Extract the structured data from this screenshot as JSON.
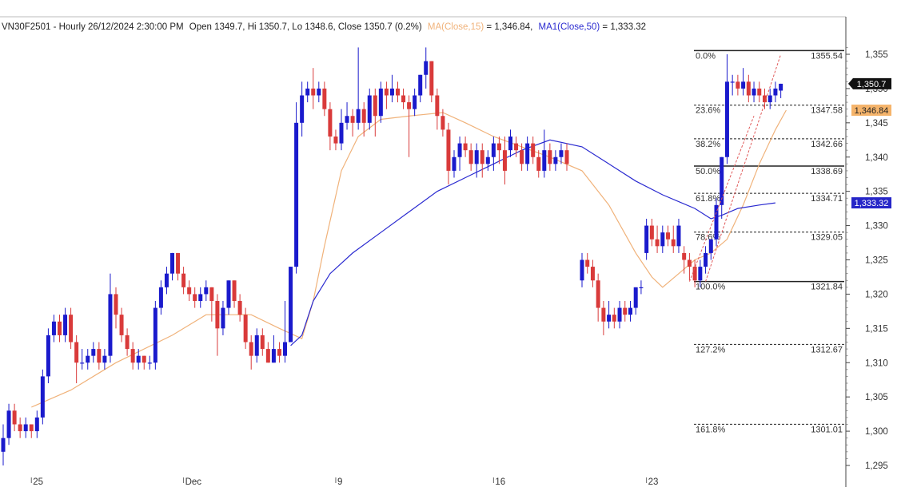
{
  "header": {
    "symbol": "VN30F2501 - Hourly 26/12/2024 2:30:00 PM",
    "ohlc": "Open 1349.7, Hi 1350.7, Lo 1348.6, Close 1350.7 (0.2%)",
    "ma_label": "MA(Close,15)",
    "ma_value": " = 1,346.84,",
    "ma1_label": "MA1(Close,50)",
    "ma1_value": " = 1,333.32"
  },
  "colors": {
    "up": "#1a1acc",
    "down": "#d93a3a",
    "ma15": "#f0b27a",
    "ma50": "#2a2ad0",
    "fib": "#222222",
    "trend": "#e05a5a",
    "axis_text": "#333333",
    "last_price_bg": "#111111",
    "ma15_tag_bg": "#f5b46b",
    "ma50_tag_bg": "#2626c8"
  },
  "chart_data": {
    "type": "candlestick",
    "timeframe": "Hourly",
    "x_ticks": [
      "25",
      "Dec",
      "9",
      "16",
      "23"
    ],
    "y_ticks": [
      1295,
      1300,
      1305,
      1310,
      1315,
      1320,
      1325,
      1330,
      1335,
      1340,
      1345,
      1350,
      1355
    ],
    "y_tick_labels": [
      "1,295",
      "1,300",
      "1,305",
      "1,310",
      "1,315",
      "1,320",
      "1,325",
      "1,330",
      "1,335",
      "1,340",
      "1,345",
      "1,350",
      "1,355"
    ],
    "ylim": [
      1294,
      1357
    ],
    "candles": [
      [
        1297,
        1299,
        1295,
        1301
      ],
      [
        1299,
        1303,
        1298,
        1304
      ],
      [
        1303,
        1301,
        1300,
        1304
      ],
      [
        1301,
        1300,
        1299,
        1302
      ],
      [
        1300,
        1301,
        1299,
        1302
      ],
      [
        1301,
        1300,
        1299,
        1301
      ],
      [
        1300,
        1302,
        1299,
        1303
      ],
      [
        1302,
        1308,
        1301,
        1309
      ],
      [
        1308,
        1314,
        1307,
        1315
      ],
      [
        1314,
        1316,
        1313,
        1317
      ],
      [
        1316,
        1314,
        1313,
        1317
      ],
      [
        1314,
        1317,
        1313,
        1318
      ],
      [
        1317,
        1313,
        1312,
        1318
      ],
      [
        1313,
        1310,
        1307,
        1314
      ],
      [
        1310,
        1310,
        1309,
        1312
      ],
      [
        1310,
        1311,
        1309,
        1312
      ],
      [
        1311,
        1312,
        1310,
        1313
      ],
      [
        1312,
        1310,
        1309,
        1313
      ],
      [
        1310,
        1311,
        1309,
        1312
      ],
      [
        1311,
        1320,
        1310,
        1323
      ],
      [
        1320,
        1317,
        1315,
        1321
      ],
      [
        1317,
        1314,
        1313,
        1318
      ],
      [
        1314,
        1312,
        1311,
        1315
      ],
      [
        1312,
        1310,
        1309,
        1313
      ],
      [
        1310,
        1311,
        1309,
        1312
      ],
      [
        1311,
        1310,
        1309,
        1311
      ],
      [
        1310,
        1310,
        1309,
        1311
      ],
      [
        1310,
        1318,
        1309,
        1319
      ],
      [
        1318,
        1321,
        1317,
        1322
      ],
      [
        1321,
        1323,
        1320,
        1324
      ],
      [
        1323,
        1326,
        1322,
        1326
      ],
      [
        1326,
        1323,
        1322,
        1326
      ],
      [
        1323,
        1321,
        1320,
        1324
      ],
      [
        1321,
        1320,
        1319,
        1322
      ],
      [
        1320,
        1319,
        1318,
        1321
      ],
      [
        1319,
        1320,
        1318,
        1321
      ],
      [
        1320,
        1321,
        1319,
        1322
      ],
      [
        1321,
        1319,
        1316,
        1321
      ],
      [
        1319,
        1315,
        1311,
        1320
      ],
      [
        1315,
        1318,
        1314,
        1319
      ],
      [
        1318,
        1322,
        1317,
        1322
      ],
      [
        1322,
        1319,
        1318,
        1322
      ],
      [
        1319,
        1317,
        1316,
        1320
      ],
      [
        1317,
        1313,
        1312,
        1318
      ],
      [
        1313,
        1311,
        1309,
        1314
      ],
      [
        1311,
        1314,
        1310,
        1315
      ],
      [
        1314,
        1312,
        1311,
        1315
      ],
      [
        1312,
        1310,
        1310,
        1313
      ],
      [
        1310,
        1312,
        1310,
        1314
      ],
      [
        1312,
        1311,
        1310,
        1313
      ],
      [
        1311,
        1313,
        1310,
        1319
      ],
      [
        1313,
        1324,
        1313,
        1324
      ],
      [
        1324,
        1345,
        1323,
        1348
      ],
      [
        1345,
        1349,
        1343,
        1351
      ],
      [
        1349,
        1350,
        1348,
        1351
      ],
      [
        1350,
        1349,
        1347,
        1353
      ],
      [
        1349,
        1350,
        1348,
        1351
      ],
      [
        1350,
        1347,
        1346,
        1351
      ],
      [
        1347,
        1343,
        1341,
        1348
      ],
      [
        1343,
        1342,
        1341,
        1344
      ],
      [
        1342,
        1345,
        1341,
        1347
      ],
      [
        1345,
        1346,
        1344,
        1348
      ],
      [
        1346,
        1345,
        1343,
        1347
      ],
      [
        1345,
        1347,
        1344,
        1356
      ],
      [
        1347,
        1345,
        1343,
        1348
      ],
      [
        1345,
        1349,
        1344,
        1350
      ],
      [
        1349,
        1346,
        1343,
        1350
      ],
      [
        1346,
        1350,
        1345,
        1351
      ],
      [
        1350,
        1349,
        1347,
        1351
      ],
      [
        1349,
        1350,
        1348,
        1352
      ],
      [
        1350,
        1349,
        1348,
        1351
      ],
      [
        1349,
        1348,
        1347,
        1350
      ],
      [
        1348,
        1347,
        1340,
        1349
      ],
      [
        1347,
        1349,
        1346,
        1350
      ],
      [
        1349,
        1352,
        1348,
        1352
      ],
      [
        1352,
        1354,
        1350,
        1356
      ],
      [
        1354,
        1349,
        1348,
        1354
      ],
      [
        1349,
        1346,
        1344,
        1350
      ],
      [
        1346,
        1344,
        1343,
        1347
      ],
      [
        1344,
        1338,
        1336,
        1345
      ],
      [
        1338,
        1340,
        1337,
        1341
      ],
      [
        1340,
        1342,
        1338,
        1343
      ],
      [
        1342,
        1341,
        1340,
        1343
      ],
      [
        1341,
        1339,
        1338,
        1342
      ],
      [
        1339,
        1341,
        1337,
        1342
      ],
      [
        1341,
        1339,
        1337,
        1342
      ],
      [
        1339,
        1340,
        1338,
        1341
      ],
      [
        1340,
        1342,
        1338,
        1343
      ],
      [
        1342,
        1341,
        1339,
        1343
      ],
      [
        1341,
        1338,
        1336,
        1343
      ],
      [
        1341,
        1343,
        1340,
        1344
      ],
      [
        1342,
        1341,
        1340,
        1343
      ],
      [
        1341,
        1339,
        1338,
        1342
      ],
      [
        1339,
        1342,
        1338,
        1343
      ],
      [
        1342,
        1340,
        1339,
        1343
      ],
      [
        1340,
        1338,
        1337,
        1341
      ],
      [
        1338,
        1341,
        1337,
        1344
      ],
      [
        1341,
        1339,
        1338,
        1342
      ],
      [
        1339,
        1340,
        1338,
        1341
      ],
      [
        1340,
        1341,
        1339,
        1342
      ],
      [
        1341,
        1339,
        1338,
        1342
      ],
      [
        1322,
        1325,
        1321,
        1326
      ],
      [
        1325,
        1324,
        1323,
        1326
      ],
      [
        1324,
        1322,
        1321,
        1325
      ],
      [
        1322,
        1318,
        1316,
        1323
      ],
      [
        1318,
        1316,
        1314,
        1319
      ],
      [
        1316,
        1317,
        1315,
        1319
      ],
      [
        1317,
        1316,
        1315,
        1318
      ],
      [
        1316,
        1318,
        1315,
        1319
      ],
      [
        1318,
        1317,
        1316,
        1319
      ],
      [
        1317,
        1318,
        1316,
        1319
      ],
      [
        1318,
        1321,
        1317,
        1321
      ],
      [
        1321,
        1321,
        1320,
        1322
      ],
      [
        1326,
        1330,
        1325,
        1331
      ],
      [
        1330,
        1328,
        1327,
        1331
      ],
      [
        1328,
        1327,
        1326,
        1330
      ],
      [
        1327,
        1329,
        1326,
        1330
      ],
      [
        1329,
        1328,
        1327,
        1330
      ],
      [
        1328,
        1327,
        1326,
        1330
      ],
      [
        1327,
        1330,
        1326,
        1331
      ],
      [
        1326,
        1325,
        1323,
        1327
      ],
      [
        1325,
        1324,
        1322,
        1326
      ],
      [
        1324,
        1322,
        1321,
        1325
      ],
      [
        1322,
        1324,
        1321,
        1325
      ],
      [
        1324,
        1326,
        1323,
        1327
      ],
      [
        1326,
        1328,
        1325,
        1328
      ],
      [
        1328,
        1333,
        1327,
        1334
      ],
      [
        1333,
        1340,
        1331,
        1340
      ],
      [
        1340,
        1351,
        1339,
        1355
      ],
      [
        1351,
        1351,
        1349,
        1352
      ],
      [
        1351,
        1350,
        1349,
        1352
      ],
      [
        1350,
        1351,
        1349,
        1353
      ],
      [
        1351,
        1349,
        1348,
        1352
      ],
      [
        1349,
        1350,
        1348,
        1351
      ],
      [
        1350,
        1349,
        1348,
        1351
      ],
      [
        1349,
        1348,
        1347,
        1350
      ],
      [
        1348,
        1349,
        1347,
        1350
      ],
      [
        1349,
        1350,
        1348,
        1351
      ],
      [
        1349.7,
        1350.7,
        1348.6,
        1350.7
      ]
    ],
    "gap_candle_index": 101,
    "ma15": {
      "name": "MA(Close,15)",
      "points": [
        [
          5,
          1303.5
        ],
        [
          12,
          1306
        ],
        [
          20,
          1310
        ],
        [
          30,
          1314
        ],
        [
          36,
          1317
        ],
        [
          44,
          1317
        ],
        [
          49,
          1315
        ],
        [
          53,
          1313.5
        ],
        [
          55,
          1319
        ],
        [
          57,
          1327
        ],
        [
          60,
          1338
        ],
        [
          63,
          1343
        ],
        [
          67,
          1345.5
        ],
        [
          72,
          1346
        ],
        [
          78,
          1346.5
        ],
        [
          82,
          1345
        ],
        [
          87,
          1343
        ],
        [
          92,
          1341.5
        ],
        [
          97,
          1340
        ],
        [
          101,
          1338
        ],
        [
          106,
          1333
        ],
        [
          111,
          1326
        ],
        [
          114,
          1322.5
        ],
        [
          116,
          1321
        ],
        [
          119,
          1323
        ],
        [
          122,
          1325
        ],
        [
          125,
          1326
        ],
        [
          128,
          1328
        ],
        [
          131,
          1333
        ],
        [
          134,
          1339
        ],
        [
          137,
          1344
        ],
        [
          139,
          1346.84
        ]
      ]
    },
    "ma50": {
      "name": "MA1(Close,50)",
      "points": [
        [
          51,
          1312.5
        ],
        [
          53,
          1314
        ],
        [
          55,
          1319
        ],
        [
          58,
          1323
        ],
        [
          62,
          1326
        ],
        [
          67,
          1329
        ],
        [
          72,
          1332
        ],
        [
          77,
          1335
        ],
        [
          82,
          1337
        ],
        [
          87,
          1339
        ],
        [
          92,
          1341
        ],
        [
          97,
          1342.5
        ],
        [
          101,
          1341.5
        ],
        [
          106,
          1339
        ],
        [
          111,
          1336.5
        ],
        [
          116,
          1334.5
        ],
        [
          122,
          1332.5
        ],
        [
          125,
          1331
        ],
        [
          127,
          1331.5
        ],
        [
          130,
          1332.5
        ],
        [
          134,
          1333
        ],
        [
          137,
          1333.32
        ]
      ]
    },
    "fibonacci": {
      "start_index": 118,
      "end_index": 139,
      "levels": [
        {
          "pct": "0.0%",
          "price": 1355.54,
          "label": "1355.54",
          "solid": true
        },
        {
          "pct": "23.6%",
          "price": 1347.58,
          "label": "1347.58",
          "solid": false
        },
        {
          "pct": "38.2%",
          "price": 1342.66,
          "label": "1342.66",
          "solid": false
        },
        {
          "pct": "50.0%",
          "price": 1338.69,
          "label": "1338.69",
          "solid": true
        },
        {
          "pct": "61.8%",
          "price": 1334.71,
          "label": "1334.71",
          "solid": false
        },
        {
          "pct": "78.6%",
          "price": 1329.05,
          "label": "1329.05",
          "solid": false
        },
        {
          "pct": "100.0%",
          "price": 1321.84,
          "label": "1321.84",
          "solid": true
        },
        {
          "pct": "127.2%",
          "price": 1312.67,
          "label": "1312.67",
          "solid": false
        },
        {
          "pct": "161.8%",
          "price": 1301.01,
          "label": "1301.01",
          "solid": false
        }
      ]
    },
    "trendlines": [
      {
        "from": [
          124,
          1321.84
        ],
        "to": [
          138,
          1355
        ]
      },
      {
        "from": [
          121,
          1321.84
        ],
        "to": [
          133,
          1346
        ]
      }
    ],
    "tags": {
      "last": "1,350.7",
      "ma15": "1,346.84",
      "ma50": "1,333.32"
    }
  }
}
